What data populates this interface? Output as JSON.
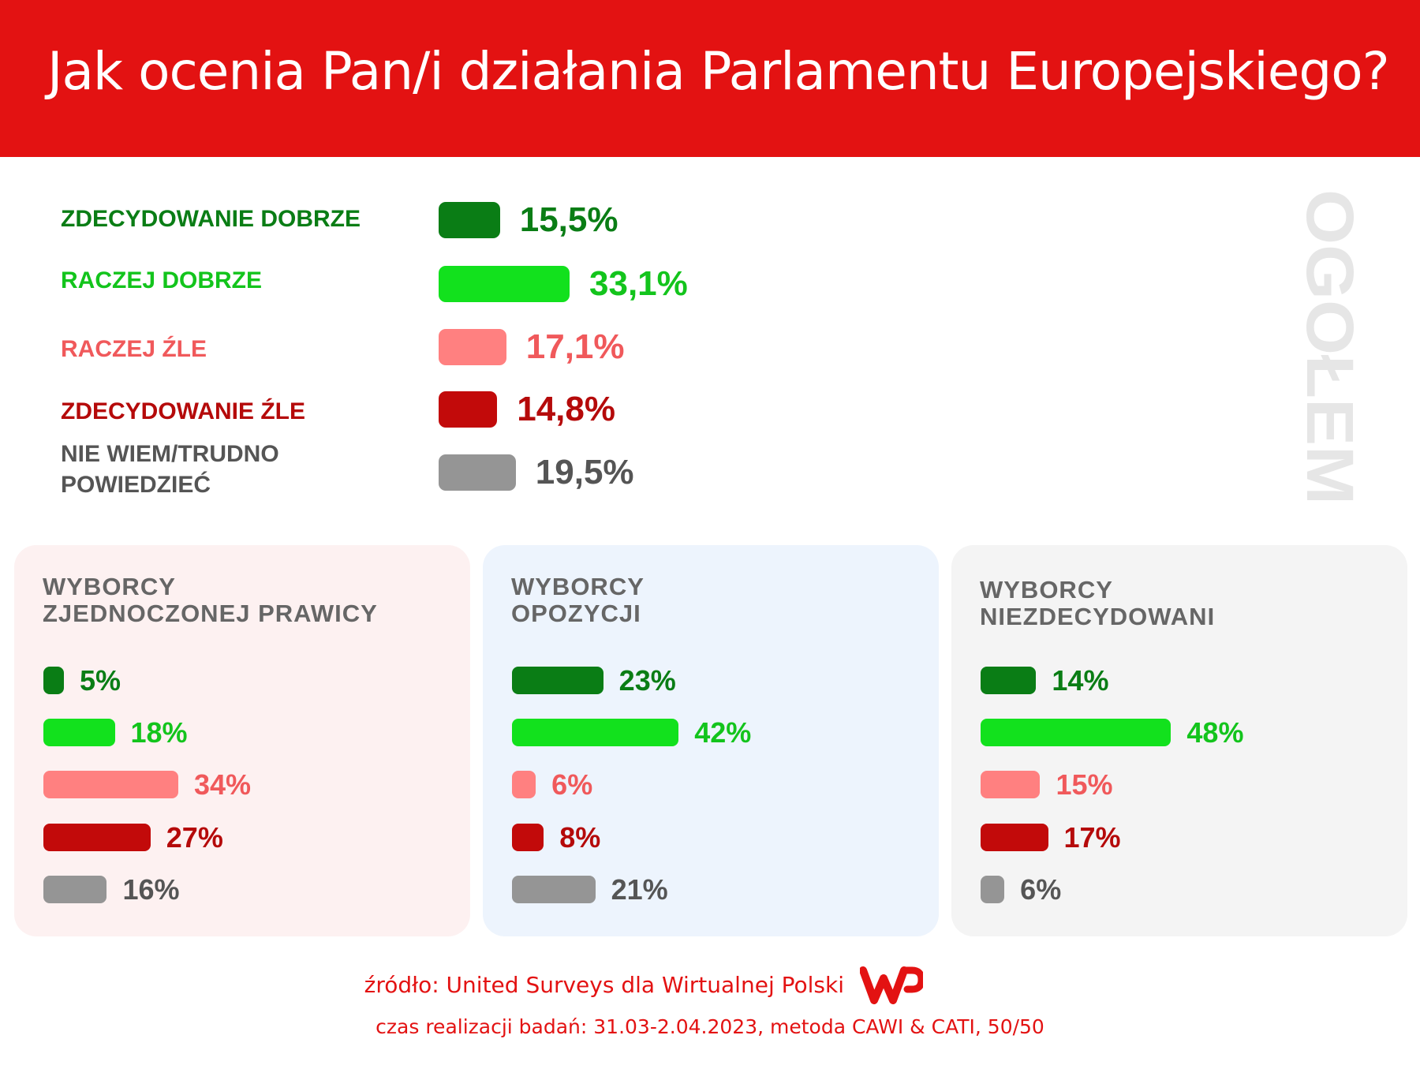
{
  "title": "Jak ocenia Pan/i działania Parlamentu Europejskiego?",
  "chart_data": [
    {
      "type": "bar",
      "title": "OGÓŁEM",
      "categories": [
        "ZDECYDOWANIE DOBRZE",
        "RACZEJ DOBRZE",
        "RACZEJ ŹLE",
        "ZDECYDOWANIE ŹLE",
        "NIE WIEM/TRUDNO POWIEDZIEĆ"
      ],
      "values": [
        15.5,
        33.1,
        17.1,
        14.8,
        19.5
      ],
      "value_labels": [
        "15,5%",
        "33,1%",
        "17,1%",
        "14,8%",
        "19,5%"
      ],
      "unit": "%"
    },
    {
      "type": "bar",
      "title": "WYBORCY ZJEDNOCZONEJ PRAWICY",
      "categories": [
        "ZDECYDOWANIE DOBRZE",
        "RACZEJ DOBRZE",
        "RACZEJ ŹLE",
        "ZDECYDOWANIE ŹLE",
        "NIE WIEM/TRUDNO POWIEDZIEĆ"
      ],
      "values": [
        5,
        18,
        34,
        27,
        16
      ],
      "value_labels": [
        "5%",
        "18%",
        "34%",
        "27%",
        "16%"
      ],
      "unit": "%"
    },
    {
      "type": "bar",
      "title": "WYBORCY OPOZYCJI",
      "categories": [
        "ZDECYDOWANIE DOBRZE",
        "RACZEJ DOBRZE",
        "RACZEJ ŹLE",
        "ZDECYDOWANIE ŹLE",
        "NIE WIEM/TRUDNO POWIEDZIEĆ"
      ],
      "values": [
        23,
        42,
        6,
        8,
        21
      ],
      "value_labels": [
        "23%",
        "42%",
        "6%",
        "8%",
        "21%"
      ],
      "unit": "%"
    },
    {
      "type": "bar",
      "title": "WYBORCY NIEZDECYDOWANI",
      "categories": [
        "ZDECYDOWANIE DOBRZE",
        "RACZEJ DOBRZE",
        "RACZEJ ŹLE",
        "ZDECYDOWANIE ŹLE",
        "NIE WIEM/TRUDNO POWIEDZIEĆ"
      ],
      "values": [
        14,
        48,
        15,
        17,
        6
      ],
      "value_labels": [
        "14%",
        "48%",
        "15%",
        "17%",
        "6%"
      ],
      "unit": "%"
    }
  ],
  "panels": [
    {
      "line1": "WYBORCY",
      "line2": "ZJEDNOCZONEJ PRAWICY"
    },
    {
      "line1": "WYBORCY",
      "line2": "OPOZYCJI"
    },
    {
      "line1": "WYBORCY",
      "line2": "NIEZDECYDOWANI"
    }
  ],
  "colors": [
    "#0a7d15",
    "#12e11d",
    "#ff8080",
    "#c20a0a",
    "#959595"
  ],
  "label_colors": [
    "#0a7d15",
    "#13c41c",
    "#f0595b",
    "#b50a0a",
    "#555555"
  ],
  "panel_backgrounds": [
    "#fdf1f1",
    "#edf4fd",
    "#f4f4f4"
  ],
  "watermark": "OGÓŁEM",
  "source": "źródło: United Surveys dla Wirtualnej Polski",
  "method": "czas realizacji badań: 31.03-2.04.2023, metoda CAWI & CATI, 50/50",
  "logo_text": "WP"
}
